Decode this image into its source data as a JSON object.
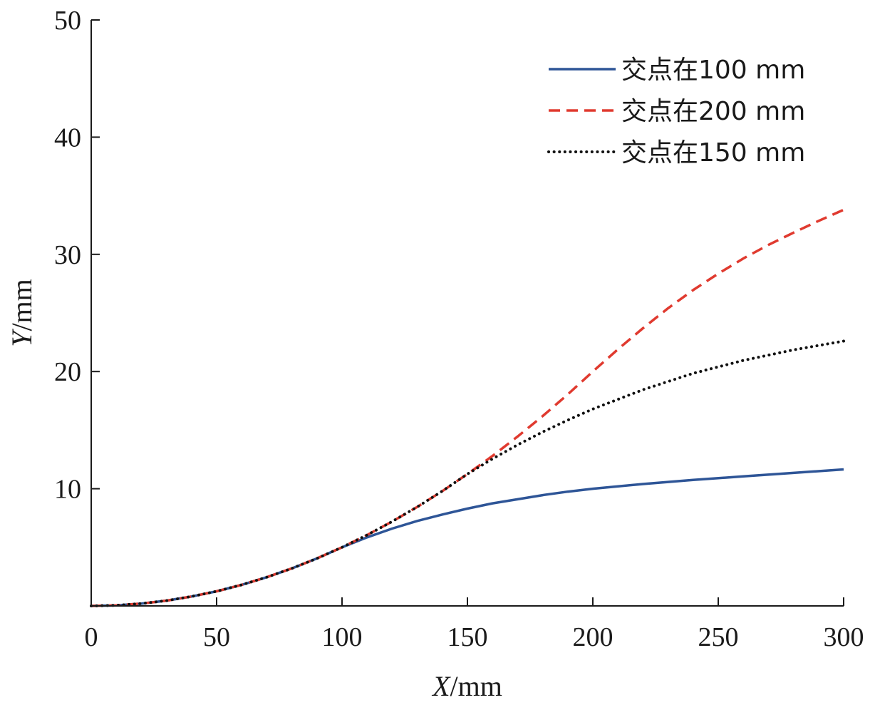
{
  "chart_data": {
    "type": "line",
    "xlabel_var": "X",
    "xlabel_unit": "/mm",
    "ylabel_var": "Y",
    "ylabel_unit": "/mm",
    "xlim": [
      0,
      300
    ],
    "ylim": [
      0,
      50
    ],
    "xticks": [
      0,
      50,
      100,
      150,
      200,
      250,
      300
    ],
    "yticks": [
      10,
      20,
      30,
      40,
      50
    ],
    "grid": false,
    "legend_position": "top-right",
    "series": [
      {
        "name": "交点在100 mm",
        "color": "#2e5597",
        "style": "solid",
        "x": [
          0,
          10,
          20,
          30,
          40,
          50,
          60,
          70,
          80,
          90,
          100,
          110,
          120,
          130,
          140,
          150,
          160,
          170,
          180,
          190,
          200,
          220,
          240,
          260,
          280,
          300
        ],
        "y": [
          0,
          0.05,
          0.2,
          0.45,
          0.8,
          1.25,
          1.8,
          2.45,
          3.2,
          4.05,
          5.0,
          5.85,
          6.6,
          7.25,
          7.8,
          8.3,
          8.75,
          9.1,
          9.45,
          9.75,
          10.0,
          10.4,
          10.75,
          11.05,
          11.35,
          11.65
        ]
      },
      {
        "name": "交点在200 mm",
        "color": "#e03a2f",
        "style": "dashed",
        "x": [
          0,
          10,
          20,
          30,
          40,
          50,
          60,
          70,
          80,
          90,
          100,
          110,
          120,
          130,
          140,
          150,
          160,
          170,
          180,
          190,
          200,
          210,
          220,
          230,
          240,
          250,
          260,
          270,
          280,
          290,
          300
        ],
        "y": [
          0,
          0.05,
          0.2,
          0.45,
          0.8,
          1.25,
          1.8,
          2.45,
          3.2,
          4.05,
          5.0,
          6.05,
          7.2,
          8.45,
          9.8,
          11.25,
          12.8,
          14.45,
          16.2,
          18.05,
          20.0,
          21.9,
          23.7,
          25.4,
          26.95,
          28.35,
          29.65,
          30.8,
          31.85,
          32.85,
          33.8
        ]
      },
      {
        "name": "交点在150 mm",
        "color": "#111111",
        "style": "dotted",
        "x": [
          0,
          10,
          20,
          30,
          40,
          50,
          60,
          70,
          80,
          90,
          100,
          110,
          120,
          130,
          140,
          150,
          160,
          170,
          180,
          190,
          200,
          220,
          240,
          260,
          280,
          300
        ],
        "y": [
          0,
          0.05,
          0.2,
          0.45,
          0.8,
          1.25,
          1.8,
          2.45,
          3.2,
          4.05,
          5.0,
          6.05,
          7.2,
          8.45,
          9.8,
          11.25,
          12.55,
          13.75,
          14.85,
          15.85,
          16.8,
          18.45,
          19.85,
          20.95,
          21.85,
          22.6
        ]
      }
    ]
  }
}
